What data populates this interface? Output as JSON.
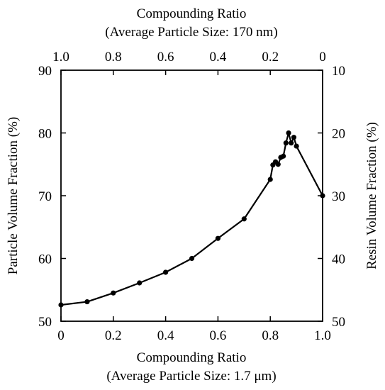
{
  "chart_data": {
    "type": "line",
    "x_bottom": {
      "title_line1": "Compounding Ratio",
      "title_line2": "(Average Particle Size: 1.7 μm)",
      "range": [
        0,
        1
      ],
      "ticks": [
        0,
        0.2,
        0.4,
        0.6,
        0.8,
        1.0
      ],
      "tick_labels": [
        "0",
        "0.2",
        "0.4",
        "0.6",
        "0.8",
        "1.0"
      ]
    },
    "x_top": {
      "title_line1": "Compounding Ratio",
      "title_line2": "(Average Particle Size: 170 nm)",
      "range": [
        1,
        0
      ],
      "ticks": [
        1.0,
        0.8,
        0.6,
        0.4,
        0.2,
        0
      ],
      "tick_labels": [
        "1.0",
        "0.8",
        "0.6",
        "0.4",
        "0.2",
        "0"
      ]
    },
    "y_left": {
      "title": "Particle Volume Fraction (%)",
      "range": [
        50,
        90
      ],
      "ticks": [
        50,
        60,
        70,
        80,
        90
      ],
      "tick_labels": [
        "50",
        "60",
        "70",
        "80",
        "90"
      ]
    },
    "y_right": {
      "title": "Resin Volume Fraction (%)",
      "range": [
        50,
        10
      ],
      "ticks": [
        50,
        40,
        30,
        20,
        10
      ],
      "tick_labels": [
        "50",
        "40",
        "30",
        "20",
        "10"
      ]
    },
    "series": [
      {
        "x": [
          0,
          0.1,
          0.2,
          0.3,
          0.4,
          0.5,
          0.6,
          0.7,
          0.8,
          0.81,
          0.82,
          0.83,
          0.84,
          0.85,
          0.86,
          0.87,
          0.88,
          0.89,
          0.9,
          1.0
        ],
        "y": [
          52.6,
          53.1,
          54.5,
          56.1,
          57.8,
          60.0,
          63.2,
          66.3,
          72.6,
          74.9,
          75.4,
          75.0,
          76.1,
          76.3,
          78.4,
          80.0,
          78.4,
          79.3,
          77.9,
          70.0
        ]
      }
    ],
    "grid": false,
    "colors": {
      "line": "#000000",
      "marker": "#000000"
    }
  }
}
